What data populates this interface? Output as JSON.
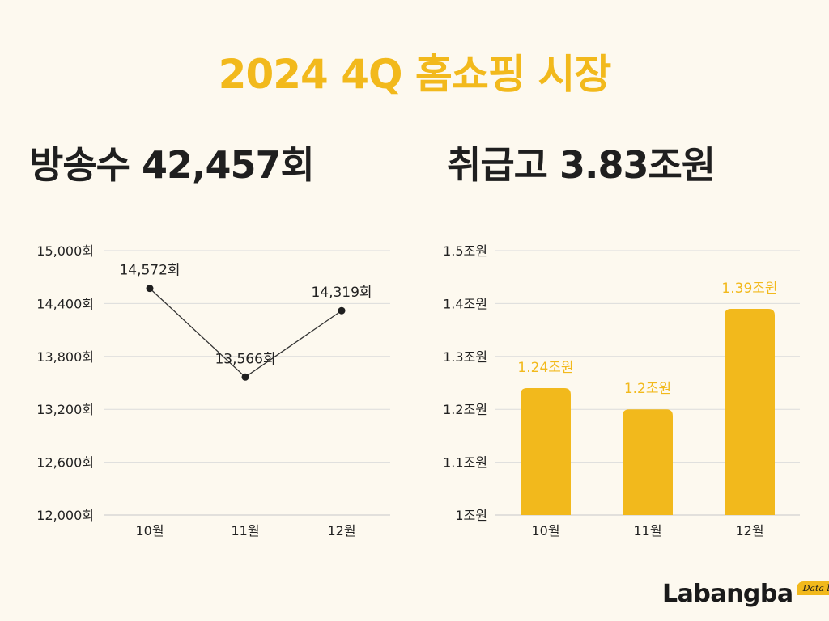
{
  "title": "2024 4Q 홈쇼핑 시장",
  "headline_left": "방송수 42,457회",
  "headline_right": "취급고 3.83조원",
  "logo": {
    "name": "Labangba",
    "tag": "Data lab"
  },
  "colors": {
    "accent": "#f2b91c",
    "text": "#1f1f1f",
    "grid": "#dcdcdc",
    "background": "#fdf9ef"
  },
  "chart_data": [
    {
      "type": "line",
      "categories": [
        "10월",
        "11월",
        "12월"
      ],
      "series": [
        {
          "values": [
            14572,
            13566,
            14319
          ],
          "labels": [
            "14,572회",
            "13,566회",
            "14,319회"
          ]
        }
      ],
      "ylim": [
        12000,
        15000
      ],
      "yticks": [
        12000,
        12600,
        13200,
        13800,
        14400,
        15000
      ],
      "ytick_labels": [
        "12,000회",
        "12,600회",
        "13,200회",
        "13,800회",
        "14,400회",
        "15,000회"
      ],
      "grid": true
    },
    {
      "type": "bar",
      "categories": [
        "10월",
        "11월",
        "12월"
      ],
      "values": [
        1.24,
        1.2,
        1.39
      ],
      "labels": [
        "1.24조원",
        "1.2조원",
        "1.39조원"
      ],
      "ylim": [
        1.0,
        1.5
      ],
      "yticks": [
        1.0,
        1.1,
        1.2,
        1.3,
        1.4,
        1.5
      ],
      "ytick_labels": [
        "1조원",
        "1.1조원",
        "1.2조원",
        "1.3조원",
        "1.4조원",
        "1.5조원"
      ],
      "grid": true
    }
  ]
}
